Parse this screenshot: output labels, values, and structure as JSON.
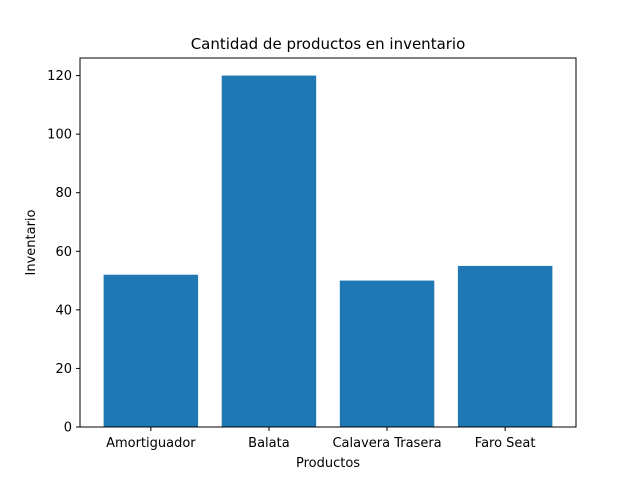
{
  "chart_data": {
    "type": "bar",
    "title": "Cantidad de productos en inventario",
    "xlabel": "Productos",
    "ylabel": "Inventario",
    "categories": [
      "Amortiguador",
      "Balata",
      "Calavera Trasera",
      "Faro Seat"
    ],
    "values": [
      52,
      120,
      50,
      55
    ],
    "ylim": [
      0,
      126
    ],
    "yticks": [
      0,
      20,
      40,
      60,
      80,
      100,
      120
    ],
    "bar_color": "#1f77b4",
    "grid": false,
    "legend": "none"
  }
}
